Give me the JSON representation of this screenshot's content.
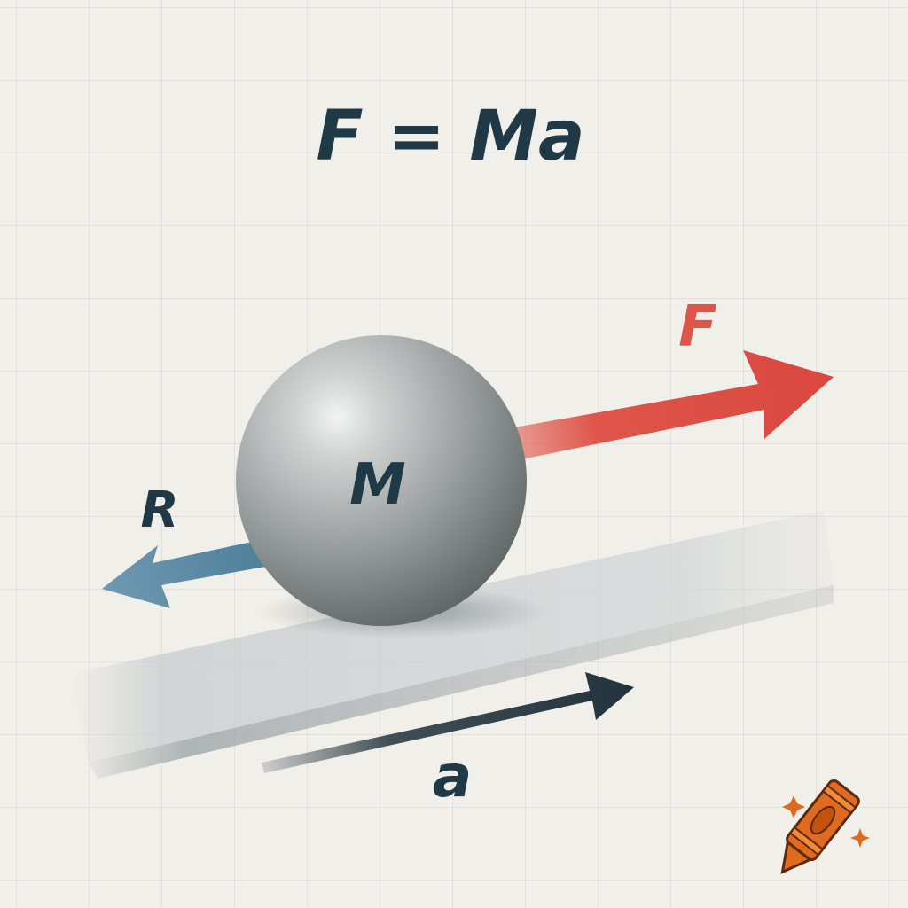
{
  "equation": "F = Ma",
  "labels": {
    "mass": "M",
    "force": "F",
    "resistance": "R",
    "acceleration": "a"
  },
  "colors": {
    "background": "#f1efe9",
    "text": "#1f3947",
    "force_arrow": "#e0554a",
    "resistance_arrow": "#4f7f9a",
    "acceleration_arrow": "#22333d",
    "sphere": "#8f9595",
    "crayon": "#e06a1f"
  },
  "icons": {
    "logo": "crayon-icon",
    "sparkles": "sparkle-icon"
  }
}
